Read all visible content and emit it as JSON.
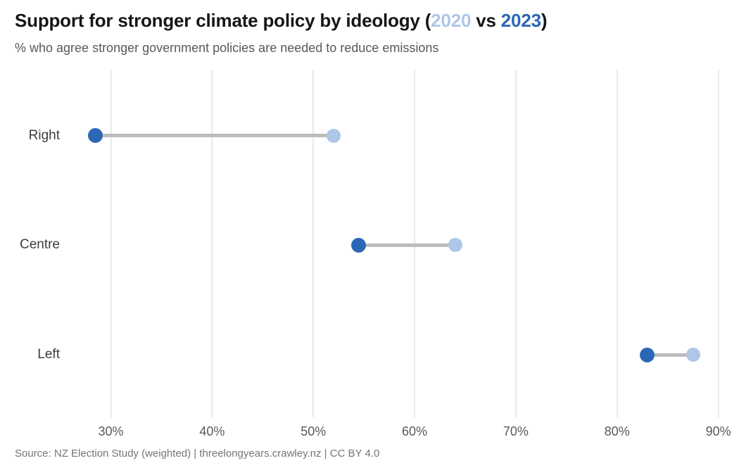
{
  "title": {
    "prefix": "Support for stronger climate policy by ideology (",
    "year_a": "2020",
    "separator": " vs ",
    "year_b": "2023",
    "suffix": ")"
  },
  "subtitle": "% who agree stronger government policies are needed to reduce emissions",
  "source": "Source: NZ Election Study (weighted) | threelongyears.crawley.nz | CC BY 4.0",
  "colors": {
    "year_2020": "#aec6e8",
    "year_2023": "#2a68b5",
    "connector": "#bcbcbc",
    "gridline": "#e9e9e9",
    "title_text": "#161616",
    "subtitle_text": "#595959",
    "tick_text": "#595959",
    "category_text": "#3d3d3d",
    "source_text": "#757575"
  },
  "chart_data": {
    "type": "dumbbell",
    "orientation": "horizontal",
    "title": "Support for stronger climate policy by ideology (2020 vs 2023)",
    "subtitle": "% who agree stronger government policies are needed to reduce emissions",
    "categories": [
      "Right",
      "Centre",
      "Left"
    ],
    "series": [
      {
        "name": "2020",
        "color": "#aec6e8",
        "values": [
          52,
          64,
          87.5
        ]
      },
      {
        "name": "2023",
        "color": "#2a68b5",
        "values": [
          28.5,
          54.5,
          83
        ]
      }
    ],
    "x_tick_values": [
      30,
      40,
      50,
      60,
      70,
      80,
      90
    ],
    "x_tick_labels": [
      "30%",
      "40%",
      "50%",
      "60%",
      "70%",
      "80%",
      "90%"
    ],
    "xlim": [
      26,
      91
    ],
    "grid": "vertical",
    "legend": "encoded-in-title-colors"
  }
}
